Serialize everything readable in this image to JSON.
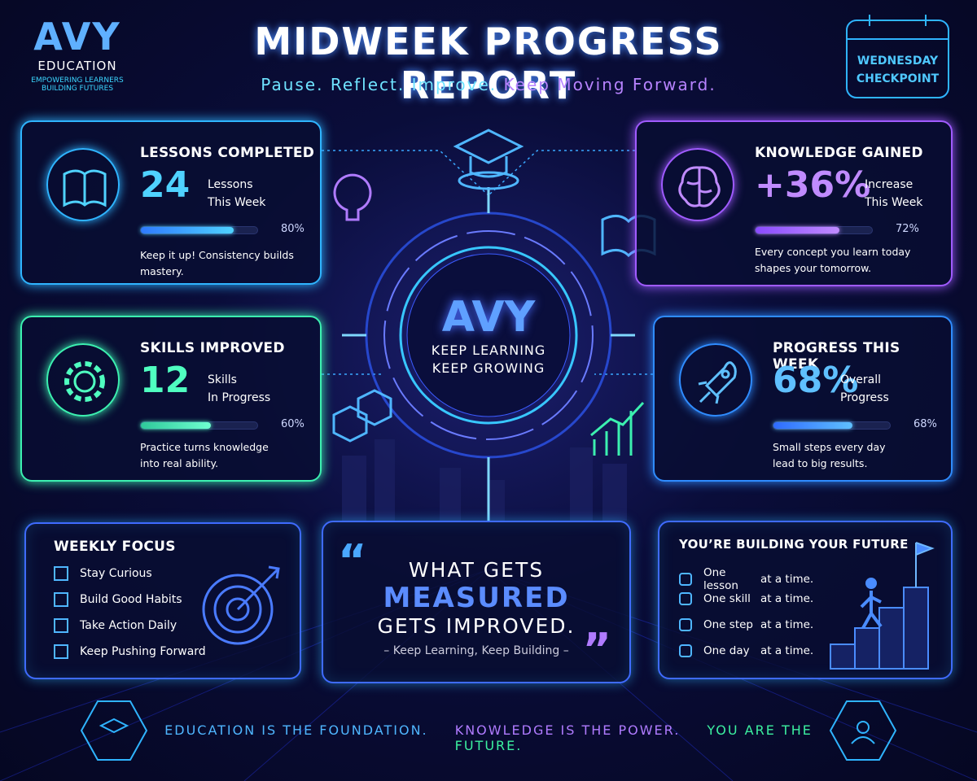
{
  "header": {
    "brand": "AVY",
    "brand_sub": "EDUCATION",
    "tagline": [
      "EMPOWERING LEARNERS",
      "BUILDING FUTURES"
    ],
    "title": "MIDWEEK PROGRESS REPORT",
    "subtitle": [
      "Pause. Reflect. Improve.",
      "Keep Moving Forward."
    ],
    "badge": [
      "WEDNESDAY",
      "CHECKPOINT"
    ]
  },
  "cards": [
    {
      "title": "LESSONS COMPLETED",
      "figure": "24",
      "unit": [
        "Lessons",
        "This Week"
      ],
      "progress": {
        "value": 80,
        "label": "80%"
      },
      "note": [
        "Keep it up! Consistency builds mastery."
      ]
    },
    {
      "title": "KNOWLEDGE GAINED",
      "figure": "+36%",
      "unit": [
        "Increase",
        "This Week"
      ],
      "progress": {
        "value": 72,
        "label": "72%"
      },
      "note": [
        "Every concept you learn today",
        "shapes your tomorrow."
      ]
    },
    {
      "title": "SKILLS IMPROVED",
      "figure": "12",
      "unit": [
        "Skills",
        "In Progress"
      ],
      "progress": {
        "value": 60,
        "label": "60%"
      },
      "note": [
        "Practice turns knowledge",
        "into real ability."
      ]
    },
    {
      "title": "PROGRESS THIS WEEK",
      "figure": "68%",
      "unit": [
        "Overall",
        "Progress"
      ],
      "progress": {
        "value": 68,
        "label": "68%"
      },
      "note": [
        "Small steps every day",
        "lead to big results."
      ]
    }
  ],
  "center": {
    "brand": "AVY",
    "lines": [
      "KEEP LEARNING",
      "KEEP GROWING"
    ]
  },
  "focus": {
    "title": "WEEKLY FOCUS",
    "items": [
      "Stay Curious",
      "Build Good Habits",
      "Take Action Daily",
      "Keep Pushing Forward"
    ]
  },
  "quote": {
    "lines": [
      "WHAT GETS",
      "MEASURED",
      "GETS IMPROVED."
    ],
    "attribution": "– Keep Learning, Keep Building –"
  },
  "future": {
    "title": "YOU’RE BUILDING YOUR FUTURE",
    "items": [
      {
        "what": "One lesson",
        "tail": "at a time."
      },
      {
        "what": "One skill",
        "tail": "at a time."
      },
      {
        "what": "One step",
        "tail": "at a time."
      },
      {
        "what": "One day",
        "tail": "at a time."
      }
    ]
  },
  "footer": [
    "EDUCATION IS THE FOUNDATION.",
    "KNOWLEDGE IS THE POWER.",
    "YOU ARE THE FUTURE."
  ]
}
